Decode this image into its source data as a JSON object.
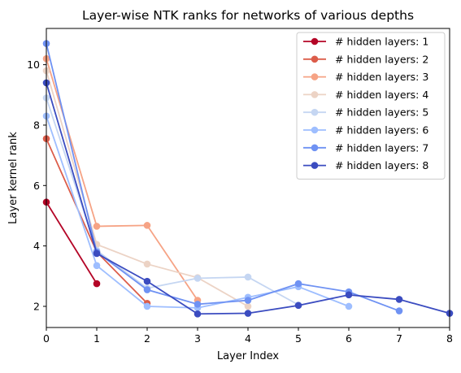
{
  "chart_data": {
    "type": "line",
    "title": "Layer-wise NTK ranks for networks of various depths",
    "xlabel": "Layer Index",
    "ylabel": "Layer kernel rank",
    "xlim": [
      0,
      8
    ],
    "ylim": [
      1.3,
      11.2
    ],
    "xticks": [
      0,
      1,
      2,
      3,
      4,
      5,
      6,
      7,
      8
    ],
    "yticks": [
      2,
      4,
      6,
      8,
      10
    ],
    "grid": false,
    "legend_position": "top-right",
    "series": [
      {
        "name": "# hidden layers: 1",
        "color": "#b40426",
        "x": [
          0,
          1
        ],
        "y": [
          5.45,
          2.75
        ]
      },
      {
        "name": "# hidden layers: 2",
        "color": "#dc5d4a",
        "x": [
          0,
          1,
          2
        ],
        "y": [
          7.55,
          3.8,
          2.1
        ]
      },
      {
        "name": "# hidden layers: 3",
        "color": "#f6a385",
        "x": [
          0,
          1,
          2,
          3
        ],
        "y": [
          10.2,
          4.65,
          4.68,
          2.2
        ]
      },
      {
        "name": "# hidden layers: 4",
        "color": "#ecd3c5",
        "x": [
          0,
          1,
          2,
          3,
          4
        ],
        "y": [
          9.8,
          4.05,
          3.4,
          2.95,
          2.0
        ]
      },
      {
        "name": "# hidden layers: 5",
        "color": "#c5d6f2",
        "x": [
          0,
          1,
          2,
          3,
          4,
          5
        ],
        "y": [
          8.9,
          3.85,
          2.6,
          2.93,
          2.97,
          2.05
        ]
      },
      {
        "name": "# hidden layers: 6",
        "color": "#9ebeff",
        "x": [
          0,
          1,
          2,
          3,
          4,
          5,
          6
        ],
        "y": [
          8.3,
          3.35,
          2.0,
          1.95,
          2.3,
          2.65,
          2.0
        ]
      },
      {
        "name": "# hidden layers: 7",
        "color": "#6f92f3",
        "x": [
          0,
          1,
          2,
          3,
          4,
          5,
          6,
          7
        ],
        "y": [
          10.7,
          3.8,
          2.55,
          2.07,
          2.2,
          2.75,
          2.48,
          1.85
        ]
      },
      {
        "name": "# hidden layers: 8",
        "color": "#3b4cc0",
        "x": [
          0,
          1,
          2,
          3,
          4,
          5,
          6,
          7,
          8
        ],
        "y": [
          9.4,
          3.75,
          2.83,
          1.75,
          1.77,
          2.03,
          2.38,
          2.23,
          1.77
        ]
      }
    ]
  }
}
